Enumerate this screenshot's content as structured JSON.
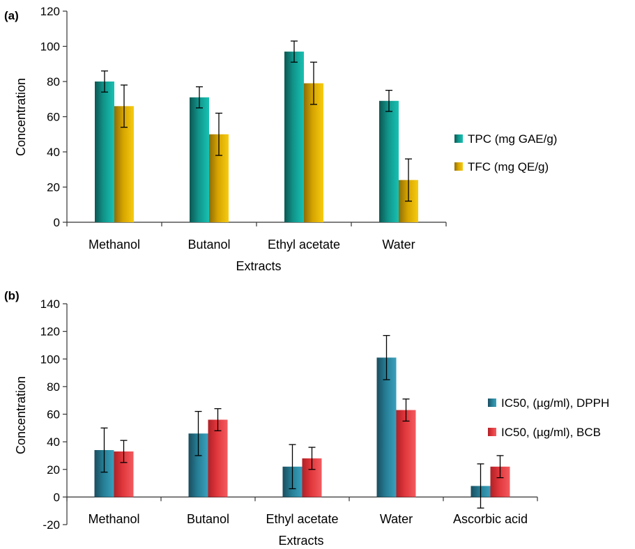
{
  "colors": {
    "series_a_tpc": [
      "#0c5752",
      "#11948a",
      "#18c1b3"
    ],
    "series_a_tfc": [
      "#8e6c06",
      "#d6a400",
      "#f7cb10"
    ],
    "series_b_dpph": [
      "#1b4c5e",
      "#257d94",
      "#3aa1bd"
    ],
    "series_b_bcb": [
      "#b02026",
      "#e0373c",
      "#f35b5f"
    ],
    "axis": "#333333",
    "error_bar": "#000000"
  },
  "chart_data": [
    {
      "panel_label": "(a)",
      "type": "bar",
      "title": "",
      "xlabel": "Extracts",
      "ylabel": "Concentration",
      "ylim": [
        0,
        120
      ],
      "yticks": [
        "0",
        "20",
        "40",
        "60",
        "80",
        "100",
        "120"
      ],
      "grid": false,
      "legend_position": "right",
      "categories": [
        "Methanol",
        "Butanol",
        "Ethyl acetate",
        "Water"
      ],
      "series": [
        {
          "name": "TPC (mg GAE/g)",
          "values": [
            80,
            71,
            97,
            69
          ],
          "errors": [
            6,
            6,
            6,
            6
          ]
        },
        {
          "name": "TFC (mg QE/g)",
          "values": [
            66,
            50,
            79,
            24
          ],
          "errors": [
            12,
            12,
            12,
            12
          ]
        }
      ]
    },
    {
      "panel_label": "(b)",
      "type": "bar",
      "title": "",
      "xlabel": "Extracts",
      "ylabel": "Concentration",
      "ylim": [
        -20,
        140
      ],
      "yticks": [
        "-20",
        "0",
        "20",
        "40",
        "60",
        "80",
        "100",
        "120",
        "140"
      ],
      "grid": false,
      "legend_position": "right",
      "categories": [
        "Methanol",
        "Butanol",
        "Ethyl acetate",
        "Water",
        "Ascorbic acid"
      ],
      "series": [
        {
          "name": "IC50, (µg/ml), DPPH",
          "values": [
            34,
            46,
            22,
            101,
            8
          ],
          "errors": [
            16,
            16,
            16,
            16,
            16
          ]
        },
        {
          "name": "IC50, (µg/ml), BCB",
          "values": [
            33,
            56,
            28,
            63,
            22
          ],
          "errors": [
            8,
            8,
            8,
            8,
            8
          ]
        }
      ]
    }
  ]
}
